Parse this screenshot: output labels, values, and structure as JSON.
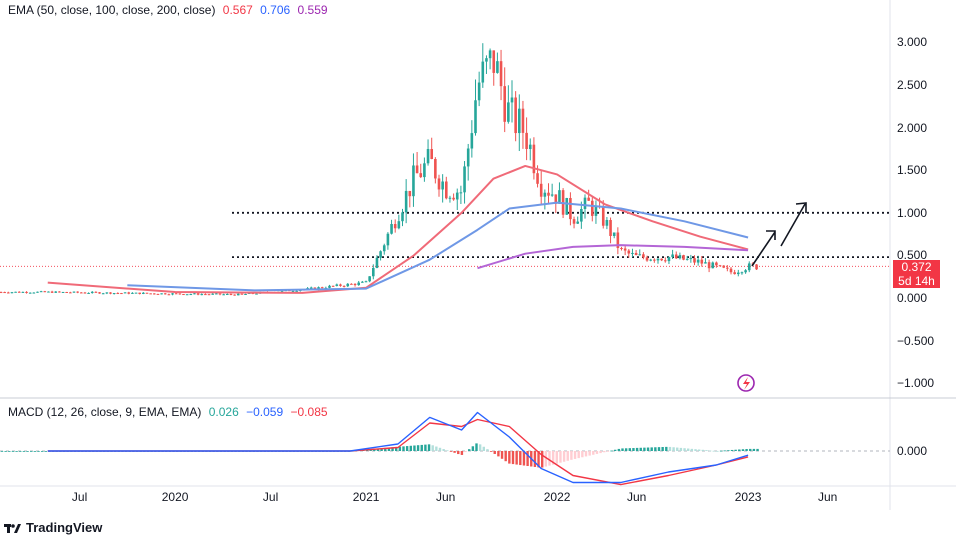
{
  "legend": {
    "ema_label": "EMA (50, close, 100, close, 200, close)",
    "ema50": "0.567",
    "ema100": "0.706",
    "ema200": "0.559",
    "macd_label": "MACD (12, 26, close, 9, EMA, EMA)",
    "macd_hist": "0.026",
    "macd_line": "−0.059",
    "macd_signal": "−0.085"
  },
  "price_axis": [
    "3.000",
    "2.500",
    "2.000",
    "1.500",
    "1.000",
    "0.500",
    "0.000",
    "−0.500",
    "−1.000"
  ],
  "macd_axis": "0.000",
  "time_axis": [
    "Jul",
    "2020",
    "Jul",
    "2021",
    "Jun",
    "2022",
    "Jun",
    "2023",
    "Jun"
  ],
  "last_price": {
    "value": "0.372",
    "countdown": "5d 14h"
  },
  "brand": "TradingView",
  "colors": {
    "up": "#26a69a",
    "down": "#ef5350",
    "ema50": "#f06a78",
    "ema100": "#6f98e6",
    "ema200": "#b466d6",
    "macd": "#2962ff",
    "signal": "#f23645",
    "hist_up_strong": "#26a69a",
    "hist_up_weak": "#b2dfdb",
    "hist_down_strong": "#ef5350",
    "hist_down_weak": "#ffcdd2"
  },
  "chart_data": [
    {
      "type": "candlestick",
      "symbol_interval": "weekly",
      "ylim": [
        -1.1,
        3.2
      ],
      "horizontal_levels": [
        1.0,
        0.48
      ],
      "last_price": 0.372,
      "price_line": {
        "x": [
          "2019-05",
          "2019-09",
          "2020-01",
          "2020-05",
          "2020-09",
          "2021-01",
          "2021-03",
          "2021-04",
          "2021-05",
          "2021-06",
          "2021-07",
          "2021-08",
          "2021-09",
          "2021-10",
          "2021-11",
          "2021-12",
          "2022-01",
          "2022-02",
          "2022-03",
          "2022-04",
          "2022-05",
          "2022-06",
          "2022-08",
          "2022-10",
          "2022-12",
          "2023-01"
        ],
        "y": [
          0.07,
          0.06,
          0.05,
          0.04,
          0.1,
          0.18,
          1.0,
          1.4,
          1.6,
          1.3,
          1.25,
          2.5,
          2.8,
          2.15,
          1.95,
          1.35,
          1.2,
          0.95,
          1.1,
          0.9,
          0.55,
          0.48,
          0.48,
          0.42,
          0.3,
          0.37
        ]
      },
      "ema50": {
        "x": [
          "2019-05",
          "2020-01",
          "2020-09",
          "2021-01",
          "2021-04",
          "2021-07",
          "2021-09",
          "2021-11",
          "2022-01",
          "2022-04",
          "2022-07",
          "2022-10",
          "2023-01"
        ],
        "y": [
          0.18,
          0.07,
          0.06,
          0.12,
          0.5,
          1.0,
          1.4,
          1.55,
          1.45,
          1.1,
          0.9,
          0.72,
          0.57
        ]
      },
      "ema100": {
        "x": [
          "2019-10",
          "2020-06",
          "2021-01",
          "2021-05",
          "2021-08",
          "2021-10",
          "2022-01",
          "2022-05",
          "2022-09",
          "2023-01"
        ],
        "y": [
          0.15,
          0.09,
          0.11,
          0.45,
          0.8,
          1.05,
          1.12,
          1.05,
          0.9,
          0.71
        ]
      },
      "ema200": {
        "x": [
          "2021-08",
          "2021-11",
          "2022-02",
          "2022-05",
          "2022-09",
          "2023-01"
        ],
        "y": [
          0.35,
          0.52,
          0.6,
          0.62,
          0.6,
          0.56
        ]
      }
    },
    {
      "type": "line",
      "name": "MACD (12, 26, close, 9, EMA, EMA)",
      "series": [
        {
          "name": "MACD",
          "x": [
            "2019-05",
            "2020-12",
            "2021-03",
            "2021-05",
            "2021-07",
            "2021-08",
            "2021-10",
            "2021-12",
            "2022-02",
            "2022-05",
            "2022-08",
            "2022-11",
            "2023-01"
          ],
          "y": [
            0.0,
            0.0,
            0.1,
            0.48,
            0.3,
            0.55,
            0.2,
            -0.25,
            -0.45,
            -0.45,
            -0.3,
            -0.2,
            -0.06
          ]
        },
        {
          "name": "Signal",
          "x": [
            "2019-05",
            "2020-12",
            "2021-03",
            "2021-05",
            "2021-07",
            "2021-08",
            "2021-10",
            "2021-12",
            "2022-02",
            "2022-05",
            "2022-08",
            "2022-11",
            "2023-01"
          ],
          "y": [
            0.0,
            0.0,
            0.05,
            0.4,
            0.35,
            0.45,
            0.35,
            -0.05,
            -0.35,
            -0.48,
            -0.35,
            -0.2,
            -0.085
          ]
        }
      ],
      "ylim": [
        -0.6,
        0.6
      ]
    }
  ]
}
